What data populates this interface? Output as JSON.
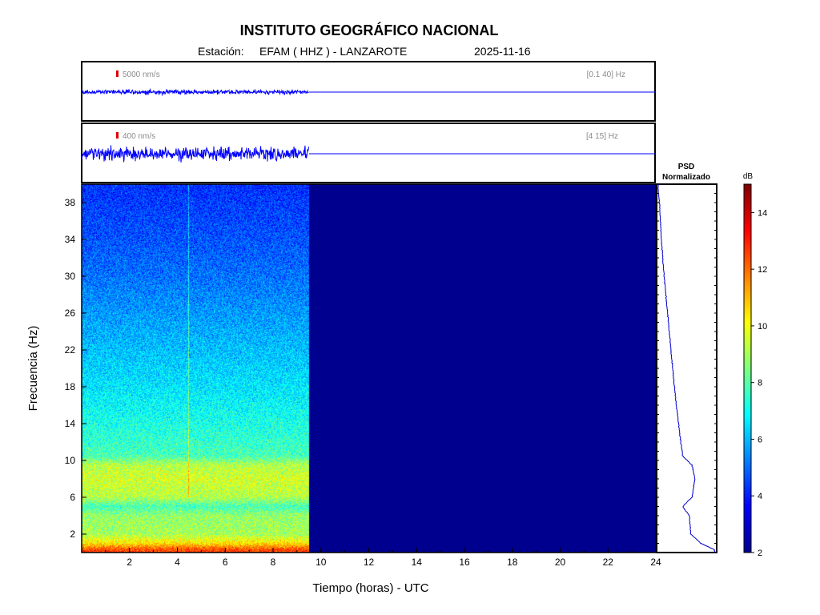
{
  "header": {
    "title": "INSTITUTO GEOGRÁFICO NACIONAL",
    "station_prefix": "Estación:",
    "station": "EFAM ( HHZ ) - LANZAROTE",
    "date": "2025-11-16"
  },
  "traces": [
    {
      "scale_label": "5000 nm/s",
      "band_label": "[0.1 40]  Hz",
      "data_end_hour": 9.5,
      "amplitude": 0.12
    },
    {
      "scale_label": "400 nm/s",
      "band_label": "[4 15]  Hz",
      "data_end_hour": 9.5,
      "amplitude": 0.35
    }
  ],
  "psd_panel": {
    "line1": "PSD",
    "line2": "Normalizado"
  },
  "colorbar": {
    "unit": "dB",
    "min": 2,
    "max": 15,
    "ticks": [
      "2",
      "4",
      "6",
      "8",
      "10",
      "12",
      "14"
    ],
    "colormap": "jet"
  },
  "axes": {
    "xlabel": "Tiempo (horas) - UTC",
    "ylabel": "Frecuencia  (Hz)",
    "x_ticks": [
      "2",
      "4",
      "6",
      "8",
      "10",
      "12",
      "14",
      "16",
      "18",
      "20",
      "22",
      "24"
    ],
    "y_ticks": [
      "2",
      "6",
      "10",
      "14",
      "18",
      "22",
      "26",
      "30",
      "34",
      "38"
    ]
  },
  "chart_data": {
    "type": "heatmap",
    "title": "INSTITUTO GEOGRÁFICO NACIONAL",
    "xlabel": "Tiempo (horas) - UTC",
    "ylabel": "Frecuencia  (Hz)",
    "xlim": [
      0,
      24
    ],
    "ylim": [
      0,
      40
    ],
    "data_end_hour": 9.5,
    "value_unit": "dB",
    "value_range": [
      2,
      15
    ],
    "frequency_profile_db": [
      {
        "f": 0.3,
        "db": 12.5
      },
      {
        "f": 1,
        "db": 10.5
      },
      {
        "f": 2,
        "db": 9.0
      },
      {
        "f": 4,
        "db": 8.8
      },
      {
        "f": 5,
        "db": 7.8
      },
      {
        "f": 6,
        "db": 9.2
      },
      {
        "f": 8,
        "db": 9.6
      },
      {
        "f": 9.5,
        "db": 9.2
      },
      {
        "f": 10.5,
        "db": 7.8
      },
      {
        "f": 14,
        "db": 7.2
      },
      {
        "f": 18,
        "db": 6.6
      },
      {
        "f": 22,
        "db": 6.1
      },
      {
        "f": 26,
        "db": 5.6
      },
      {
        "f": 30,
        "db": 5.1
      },
      {
        "f": 34,
        "db": 4.7
      },
      {
        "f": 38,
        "db": 4.4
      },
      {
        "f": 40,
        "db": 4.2
      }
    ]
  }
}
